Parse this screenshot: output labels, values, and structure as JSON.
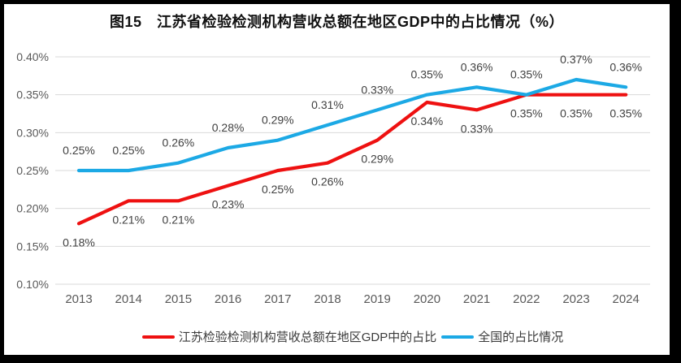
{
  "title": "图15　江苏省检验检测机构营收总额在地区GDP中的占比情况（%）",
  "colors": {
    "jiangsu_line": "#ee1111",
    "national_line": "#1ca9e5",
    "gridline": "#d9d9d9",
    "axis_text": "#595959",
    "data_label_text": "#404040",
    "frame_border": "#000000",
    "panel_background": "#ffffff"
  },
  "chart_data": {
    "type": "line",
    "title": "图15　江苏省检验检测机构营收总额在地区GDP中的占比情况（%）",
    "x_labels": [
      "2013",
      "2014",
      "2015",
      "2016",
      "2017",
      "2018",
      "2019",
      "2020",
      "2021",
      "2022",
      "2023",
      "2024"
    ],
    "ylim": [
      0.1,
      0.4
    ],
    "y_ticks": [
      {
        "value": 0.4,
        "label": "0.40%"
      },
      {
        "value": 0.35,
        "label": "0.35%"
      },
      {
        "value": 0.3,
        "label": "0.30%"
      },
      {
        "value": 0.25,
        "label": "0.25%"
      },
      {
        "value": 0.2,
        "label": "0.20%"
      },
      {
        "value": 0.15,
        "label": "0.15%"
      },
      {
        "value": 0.1,
        "label": "0.10%"
      }
    ],
    "grid": true,
    "legend_position": "bottom",
    "series": [
      {
        "name": "江苏检验检测机构营收总额在地区GDP中的占比",
        "color": "#ee1111",
        "values": [
          0.18,
          0.21,
          0.21,
          0.23,
          0.25,
          0.26,
          0.29,
          0.34,
          0.33,
          0.35,
          0.35,
          0.35
        ],
        "data_labels": [
          "0.18%",
          "0.21%",
          "0.21%",
          "0.23%",
          "0.25%",
          "0.26%",
          "0.29%",
          "0.34%",
          "0.33%",
          "0.35%",
          "0.35%",
          "0.35%"
        ],
        "label_side": "below"
      },
      {
        "name": "全国的占比情况",
        "color": "#1ca9e5",
        "values": [
          0.25,
          0.25,
          0.26,
          0.28,
          0.29,
          0.31,
          0.33,
          0.35,
          0.36,
          0.35,
          0.37,
          0.36
        ],
        "data_labels": [
          "0.25%",
          "0.25%",
          "0.26%",
          "0.28%",
          "0.29%",
          "0.31%",
          "0.33%",
          "0.35%",
          "0.36%",
          "0.35%",
          "0.37%",
          "0.36%"
        ],
        "label_side": "above"
      }
    ]
  }
}
